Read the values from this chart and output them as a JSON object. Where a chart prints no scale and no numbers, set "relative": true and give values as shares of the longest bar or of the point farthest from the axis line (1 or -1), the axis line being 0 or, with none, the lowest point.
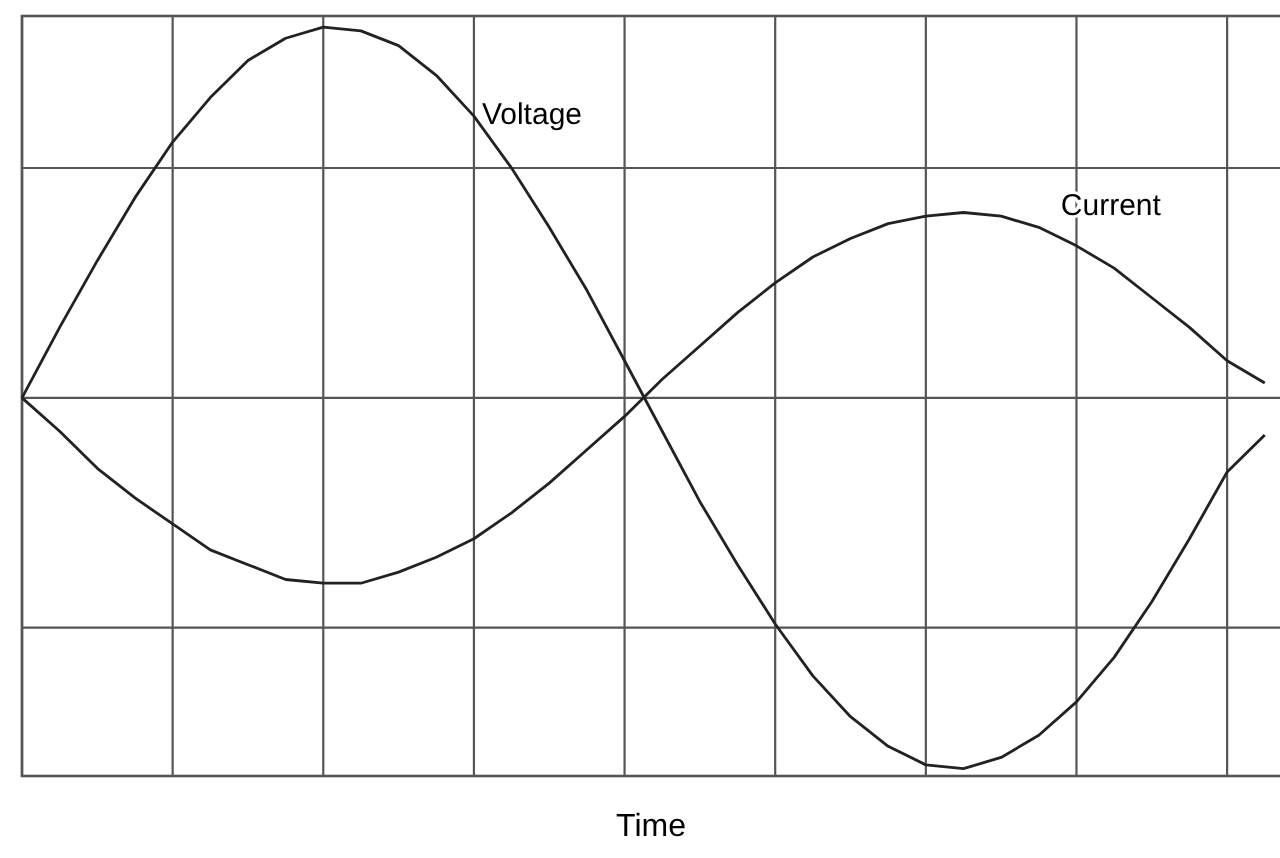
{
  "chart_data": {
    "type": "line",
    "xlabel": "Time",
    "relative": true,
    "categories": [
      null,
      null,
      null,
      null,
      null,
      null,
      null,
      null,
      null,
      null,
      null,
      null,
      null,
      null,
      null,
      null,
      null,
      null,
      null,
      null,
      null,
      null,
      null,
      null,
      null,
      null,
      null,
      null,
      null,
      null,
      null,
      null,
      null,
      null
    ],
    "grid": true,
    "marker": "none",
    "line_style": "solid",
    "series": [
      {
        "name": "Voltage",
        "color": "#222222",
        "values": [
          0,
          0.19,
          0.37,
          0.54,
          0.69,
          0.81,
          0.91,
          0.97,
          1,
          0.99,
          0.95,
          0.87,
          0.76,
          0.62,
          0.46,
          0.29,
          0.1,
          -0.09,
          -0.28,
          -0.45,
          -0.61,
          -0.75,
          -0.86,
          -0.94,
          -0.99,
          -1,
          -0.97,
          -0.91,
          -0.82,
          -0.7,
          -0.55,
          -0.38,
          -0.2,
          -0.1
        ]
      },
      {
        "name": "Current",
        "color": "#222222",
        "values": [
          0,
          -0.09,
          -0.19,
          -0.27,
          -0.34,
          -0.41,
          -0.45,
          -0.49,
          -0.5,
          -0.5,
          -0.47,
          -0.43,
          -0.38,
          -0.31,
          -0.23,
          -0.14,
          -0.05,
          0.05,
          0.14,
          0.23,
          0.31,
          0.38,
          0.43,
          0.47,
          0.49,
          0.5,
          0.49,
          0.46,
          0.41,
          0.35,
          0.27,
          0.19,
          0.1,
          0.04
        ]
      }
    ]
  }
}
